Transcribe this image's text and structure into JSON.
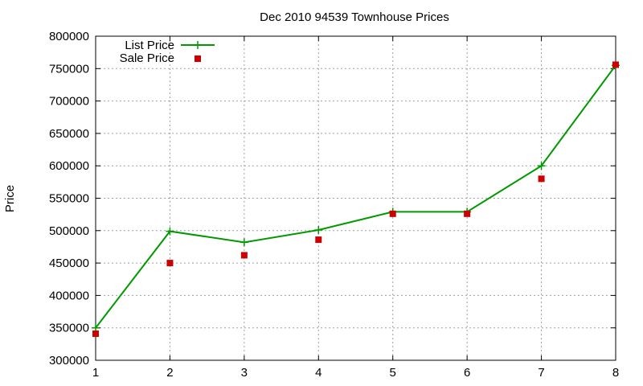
{
  "chart_data": {
    "type": "line",
    "title": "Dec 2010 94539 Townhouse Prices",
    "xlabel": "",
    "ylabel": "Price",
    "x": [
      1,
      2,
      3,
      4,
      5,
      6,
      7,
      8
    ],
    "xlim": [
      1,
      8
    ],
    "ylim": [
      300000,
      800000
    ],
    "xticks": [
      1,
      2,
      3,
      4,
      5,
      6,
      7,
      8
    ],
    "yticks": [
      300000,
      350000,
      400000,
      450000,
      500000,
      550000,
      600000,
      650000,
      700000,
      750000,
      800000
    ],
    "grid": true,
    "legend_position": "top-left",
    "series": [
      {
        "name": "List Price",
        "style": "lines+points",
        "marker": "plus",
        "color": "#009900",
        "values": [
          350000,
          499000,
          482000,
          501000,
          529000,
          529000,
          600000,
          755000
        ]
      },
      {
        "name": "Sale Price",
        "style": "points",
        "marker": "square",
        "color": "#cc0000",
        "values": [
          341000,
          450000,
          462000,
          486000,
          526000,
          526000,
          580000,
          756000
        ]
      }
    ]
  }
}
